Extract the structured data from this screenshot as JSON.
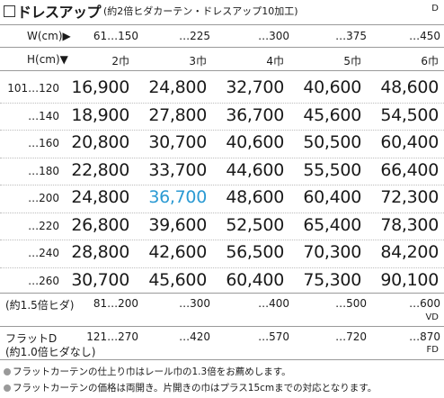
{
  "header": {
    "title": "ドレスアップ",
    "subtitle": "(約2倍ヒダカーテン・ドレスアップ10加工)",
    "code": "D"
  },
  "width_header": {
    "label": "W(cm)▶",
    "values": [
      "61…150",
      "…225",
      "…300",
      "…375",
      "…450"
    ]
  },
  "height_header": {
    "label": "H(cm)▼",
    "panels": [
      "2巾",
      "3巾",
      "4巾",
      "5巾",
      "6巾"
    ]
  },
  "rows": [
    {
      "height": "101…120",
      "prices": [
        "16,900",
        "24,800",
        "32,700",
        "40,600",
        "48,600"
      ]
    },
    {
      "height": "…140",
      "prices": [
        "18,900",
        "27,800",
        "36,700",
        "45,600",
        "54,500"
      ]
    },
    {
      "height": "…160",
      "prices": [
        "20,800",
        "30,700",
        "40,600",
        "50,500",
        "60,400"
      ]
    },
    {
      "height": "…180",
      "prices": [
        "22,800",
        "33,700",
        "44,600",
        "55,500",
        "66,400"
      ]
    },
    {
      "height": "…200",
      "prices": [
        "24,800",
        "36,700",
        "48,600",
        "60,400",
        "72,300"
      ]
    },
    {
      "height": "…220",
      "prices": [
        "26,800",
        "39,600",
        "52,500",
        "65,400",
        "78,300"
      ]
    },
    {
      "height": "…240",
      "prices": [
        "28,800",
        "42,600",
        "56,500",
        "70,300",
        "84,200"
      ]
    },
    {
      "height": "…260",
      "prices": [
        "30,700",
        "45,600",
        "60,400",
        "75,300",
        "90,100"
      ]
    }
  ],
  "highlight_color": "#2b9ad3",
  "vd_row": {
    "label": "(約1.5倍ヒダ)",
    "values": [
      "81…200",
      "…300",
      "…400",
      "…500",
      "…600"
    ],
    "code": "VD"
  },
  "fd_row": {
    "label_line1": "フラットD",
    "label_line2": "(約1.0倍ヒダなし)",
    "values": [
      "121…270",
      "…420",
      "…570",
      "…720",
      "…870"
    ],
    "code": "FD"
  },
  "notes": [
    "フラットカーテンの仕上り巾はレール巾の1.3倍をお薦めします。",
    "フラットカーテンの価格は両開き。片開きの巾はプラス15cmまでの対応となります。"
  ]
}
